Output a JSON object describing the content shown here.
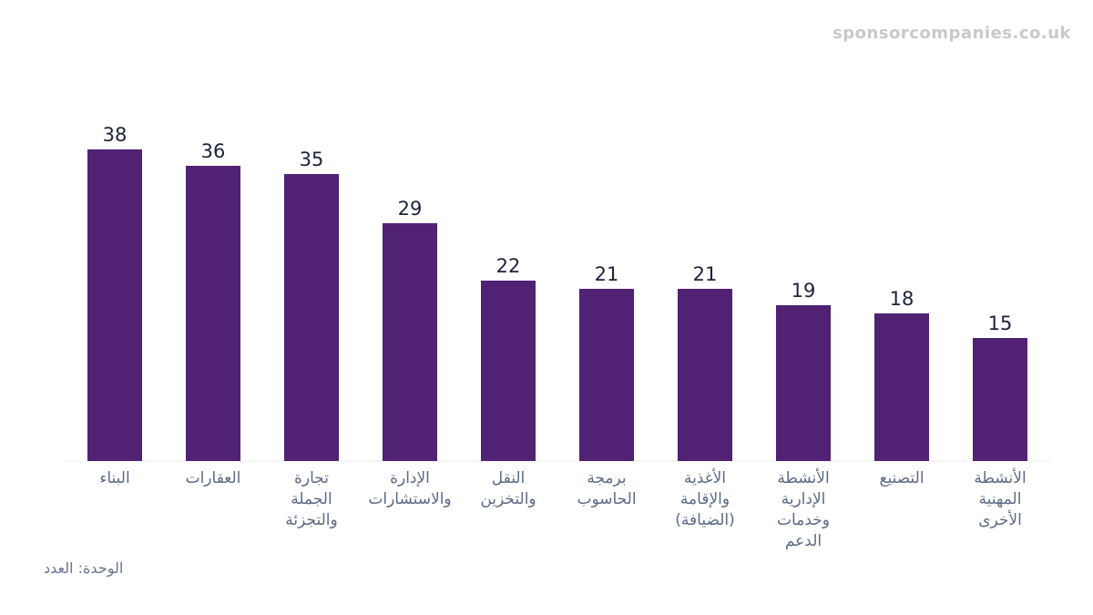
{
  "watermark": "sponsorcompanies.co.uk",
  "unit_note": "الوحدة: العدد",
  "colors": {
    "bar": "#512174",
    "baseline": "#eeeeee"
  },
  "chart_data": {
    "type": "bar",
    "categories": [
      [
        "البناء"
      ],
      [
        "العقارات"
      ],
      [
        "تجارة",
        "الجملة",
        "والتجزئة"
      ],
      [
        "الإدارة",
        "والاستشارات"
      ],
      [
        "النقل",
        "والتخزين"
      ],
      [
        "برمجة",
        "الحاسوب"
      ],
      [
        "الأغذية",
        "والإقامة",
        "(الضيافة)"
      ],
      [
        "الأنشطة",
        "الإدارية",
        "وخدمات",
        "الدعم"
      ],
      [
        "التصنيع"
      ],
      [
        "الأنشطة",
        "المهنية",
        "الأخرى"
      ]
    ],
    "values": [
      38,
      36,
      35,
      29,
      22,
      21,
      21,
      19,
      18,
      15
    ],
    "ylim": [
      0,
      38
    ],
    "grid": false,
    "legend": "none"
  }
}
